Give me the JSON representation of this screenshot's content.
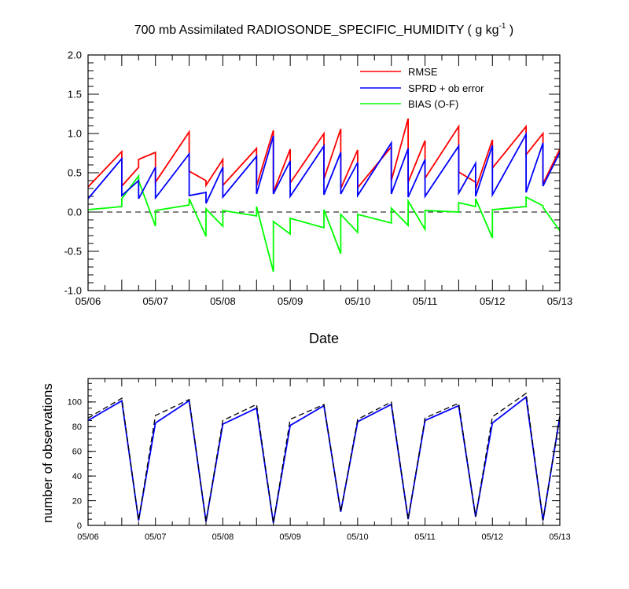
{
  "title": "700 mb Assimilated RADIOSONDE_SPECIFIC_HUMIDITY ( g kg",
  "title_sup": "-1",
  "title_tail": " )",
  "chart_data": [
    {
      "type": "line",
      "xlabel": "Date",
      "ylabel": "",
      "x_tick_labels": [
        "05/06",
        "05/07",
        "05/08",
        "05/09",
        "05/10",
        "05/11",
        "05/12",
        "05/13"
      ],
      "xlim": [
        0,
        7
      ],
      "ylim": [
        -1.0,
        2.0
      ],
      "y_ticks": [
        -1.0,
        -0.5,
        0.0,
        0.5,
        1.0,
        1.5,
        2.0
      ],
      "y_tick_labels": [
        "-1.0",
        "-0.5",
        "0.0",
        "0.5",
        "1.0",
        "1.5",
        "2.0"
      ],
      "legend_position": "top-right",
      "zero_line": "dashed",
      "series": [
        {
          "name": "RMSE",
          "color": "#ff0000",
          "points": [
            [
              0,
              0.32
            ],
            [
              0.5,
              0.77
            ],
            [
              0.5,
              0.33
            ],
            [
              0.75,
              0.57
            ],
            [
              0.75,
              0.67
            ],
            [
              1.0,
              0.76
            ],
            [
              1.0,
              0.38
            ],
            [
              1.5,
              1.02
            ],
            [
              1.5,
              0.52
            ],
            [
              1.75,
              0.4
            ],
            [
              1.75,
              0.34
            ],
            [
              2.0,
              0.67
            ],
            [
              2.0,
              0.34
            ],
            [
              2.5,
              0.81
            ],
            [
              2.5,
              0.33
            ],
            [
              2.75,
              1.04
            ],
            [
              2.75,
              0.25
            ],
            [
              3.0,
              0.8
            ],
            [
              3.0,
              0.37
            ],
            [
              3.5,
              1.0
            ],
            [
              3.5,
              0.42
            ],
            [
              3.75,
              1.06
            ],
            [
              3.75,
              0.3
            ],
            [
              4.0,
              0.79
            ],
            [
              4.0,
              0.31
            ],
            [
              4.5,
              0.83
            ],
            [
              4.5,
              0.4
            ],
            [
              4.75,
              1.19
            ],
            [
              4.75,
              0.38
            ],
            [
              5.0,
              0.91
            ],
            [
              5.0,
              0.43
            ],
            [
              5.5,
              1.09
            ],
            [
              5.5,
              0.51
            ],
            [
              5.75,
              0.38
            ],
            [
              5.75,
              0.29
            ],
            [
              6.0,
              0.92
            ],
            [
              6.0,
              0.56
            ],
            [
              6.5,
              1.09
            ],
            [
              6.5,
              0.73
            ],
            [
              6.75,
              1.0
            ],
            [
              6.75,
              0.36
            ],
            [
              7.0,
              0.8
            ]
          ]
        },
        {
          "name": "SPRD + ob error",
          "color": "#0000ff",
          "points": [
            [
              0,
              0.17
            ],
            [
              0.5,
              0.68
            ],
            [
              0.5,
              0.21
            ],
            [
              0.75,
              0.4
            ],
            [
              0.75,
              0.17
            ],
            [
              1.0,
              0.57
            ],
            [
              1.0,
              0.18
            ],
            [
              1.5,
              0.74
            ],
            [
              1.5,
              0.21
            ],
            [
              1.75,
              0.25
            ],
            [
              1.75,
              0.11
            ],
            [
              2.0,
              0.57
            ],
            [
              2.0,
              0.19
            ],
            [
              2.5,
              0.71
            ],
            [
              2.5,
              0.23
            ],
            [
              2.75,
              0.97
            ],
            [
              2.75,
              0.23
            ],
            [
              3.0,
              0.65
            ],
            [
              3.0,
              0.2
            ],
            [
              3.5,
              0.84
            ],
            [
              3.5,
              0.22
            ],
            [
              3.75,
              0.76
            ],
            [
              3.75,
              0.23
            ],
            [
              4.0,
              0.63
            ],
            [
              4.0,
              0.21
            ],
            [
              4.5,
              0.88
            ],
            [
              4.5,
              0.23
            ],
            [
              4.75,
              0.81
            ],
            [
              4.75,
              0.19
            ],
            [
              5.0,
              0.67
            ],
            [
              5.0,
              0.2
            ],
            [
              5.5,
              0.84
            ],
            [
              5.5,
              0.24
            ],
            [
              5.75,
              0.62
            ],
            [
              5.75,
              0.2
            ],
            [
              6.0,
              0.85
            ],
            [
              6.0,
              0.22
            ],
            [
              6.5,
              0.99
            ],
            [
              6.5,
              0.25
            ],
            [
              6.75,
              0.88
            ],
            [
              6.75,
              0.33
            ],
            [
              7.0,
              0.76
            ]
          ]
        },
        {
          "name": "BIAS (O-F)",
          "color": "#00ff00",
          "points": [
            [
              0,
              0.03
            ],
            [
              0.5,
              0.07
            ],
            [
              0.5,
              0.17
            ],
            [
              0.75,
              0.46
            ],
            [
              0.75,
              0.4
            ],
            [
              1.0,
              -0.18
            ],
            [
              1.0,
              0.02
            ],
            [
              1.5,
              0.09
            ],
            [
              1.5,
              0.17
            ],
            [
              1.75,
              -0.31
            ],
            [
              1.75,
              0.04
            ],
            [
              2.0,
              -0.18
            ],
            [
              2.0,
              0.02
            ],
            [
              2.5,
              -0.05
            ],
            [
              2.5,
              0.07
            ],
            [
              2.75,
              -0.76
            ],
            [
              2.75,
              -0.12
            ],
            [
              3.0,
              -0.28
            ],
            [
              3.0,
              -0.08
            ],
            [
              3.5,
              -0.2
            ],
            [
              3.5,
              0.03
            ],
            [
              3.75,
              -0.53
            ],
            [
              3.75,
              -0.03
            ],
            [
              4.0,
              -0.26
            ],
            [
              4.0,
              -0.03
            ],
            [
              4.5,
              -0.14
            ],
            [
              4.5,
              0.05
            ],
            [
              4.75,
              -0.17
            ],
            [
              4.75,
              0.14
            ],
            [
              5.0,
              -0.22
            ],
            [
              5.0,
              0.02
            ],
            [
              5.5,
              0.0
            ],
            [
              5.5,
              0.12
            ],
            [
              5.75,
              0.07
            ],
            [
              5.75,
              0.17
            ],
            [
              6.0,
              -0.33
            ],
            [
              6.0,
              0.03
            ],
            [
              6.5,
              0.07
            ],
            [
              6.5,
              0.19
            ],
            [
              6.75,
              0.08
            ],
            [
              6.75,
              0.06
            ],
            [
              7.0,
              -0.24
            ]
          ]
        }
      ]
    },
    {
      "type": "line",
      "xlabel": "",
      "ylabel": "number of observations",
      "x_tick_labels": [
        "05/06",
        "05/07",
        "05/08",
        "05/09",
        "05/10",
        "05/11",
        "05/12",
        "05/13"
      ],
      "xlim": [
        0,
        7
      ],
      "ylim": [
        0,
        119
      ],
      "y_ticks": [
        0,
        20,
        40,
        60,
        80,
        100
      ],
      "y_tick_labels": [
        "0",
        "20",
        "40",
        "60",
        "80",
        "100"
      ],
      "series": [
        {
          "color": "#0000ff",
          "style": "solid",
          "points": [
            [
              0,
              85
            ],
            [
              0.5,
              101
            ],
            [
              0.75,
              4
            ],
            [
              1.0,
              83
            ],
            [
              1.5,
              101
            ],
            [
              1.75,
              3
            ],
            [
              2.0,
              82
            ],
            [
              2.5,
              95
            ],
            [
              2.75,
              2
            ],
            [
              3.0,
              81
            ],
            [
              3.5,
              97
            ],
            [
              3.75,
              11
            ],
            [
              4.0,
              84
            ],
            [
              4.5,
              98
            ],
            [
              4.75,
              5
            ],
            [
              5.0,
              85
            ],
            [
              5.5,
              97
            ],
            [
              5.75,
              7
            ],
            [
              6.0,
              83
            ],
            [
              6.5,
              104
            ],
            [
              6.75,
              4
            ],
            [
              7.0,
              88
            ]
          ]
        },
        {
          "color": "#000000",
          "style": "dashed",
          "points": [
            [
              0,
              87
            ],
            [
              0.5,
              103
            ],
            [
              0.75,
              4
            ],
            [
              1.0,
              89
            ],
            [
              1.5,
              102
            ],
            [
              1.75,
              3
            ],
            [
              2.0,
              85
            ],
            [
              2.5,
              98
            ],
            [
              2.75,
              2
            ],
            [
              3.0,
              86
            ],
            [
              3.5,
              98
            ],
            [
              3.75,
              11
            ],
            [
              4.0,
              86
            ],
            [
              4.5,
              100
            ],
            [
              4.75,
              5
            ],
            [
              5.0,
              87
            ],
            [
              5.5,
              99
            ],
            [
              5.75,
              7
            ],
            [
              6.0,
              88
            ],
            [
              6.5,
              107
            ],
            [
              6.75,
              4
            ],
            [
              7.0,
              89
            ]
          ]
        }
      ]
    }
  ]
}
